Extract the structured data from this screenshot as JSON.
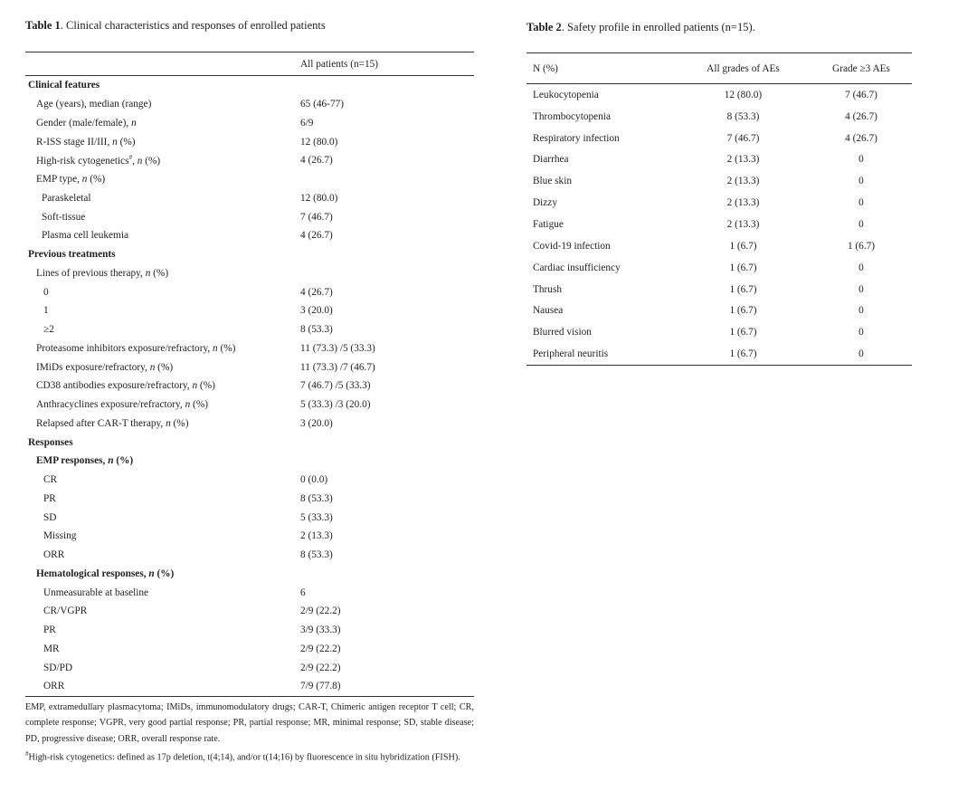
{
  "table1": {
    "caption_label": "Table 1",
    "caption_text": ". Clinical characteristics and responses of enrolled patients",
    "header": "All patients (n=15)",
    "rows": [
      {
        "label": "Clinical features",
        "value": "",
        "style": "sec"
      },
      {
        "label": "Age (years), median (range)",
        "value": "65 (46-77)",
        "style": "l1"
      },
      {
        "label": "Gender (male/female), n",
        "value": "6/9",
        "style": "l1"
      },
      {
        "label": "R-ISS stage II/III, n (%)",
        "value": "12 (80.0)",
        "style": "l1"
      },
      {
        "label": "High-risk cytogenetics#, n (%)",
        "value": "4 (26.7)",
        "style": "l1"
      },
      {
        "label": "EMP type, n (%)",
        "value": "",
        "style": "l1"
      },
      {
        "label": "Paraskeletal",
        "value": "12 (80.0)",
        "style": "l2"
      },
      {
        "label": "Soft-tissue",
        "value": "7 (46.7)",
        "style": "l2"
      },
      {
        "label": "Plasma cell leukemia",
        "value": "4 (26.7)",
        "style": "l2"
      },
      {
        "label": "Previous treatments",
        "value": "",
        "style": "sec"
      },
      {
        "label": "Lines of previous therapy, n (%)",
        "value": "",
        "style": "l1"
      },
      {
        "label": "0",
        "value": "4 (26.7)",
        "style": "l3"
      },
      {
        "label": "1",
        "value": "3 (20.0)",
        "style": "l3"
      },
      {
        "label": "≥2",
        "value": "8 (53.3)",
        "style": "l3"
      },
      {
        "label": "Proteasome inhibitors exposure/refractory, n (%)",
        "value": "11 (73.3) /5 (33.3)",
        "style": "l1"
      },
      {
        "label": "IMiDs exposure/refractory, n (%)",
        "value": "11 (73.3) /7 (46.7)",
        "style": "l1"
      },
      {
        "label": "CD38 antibodies exposure/refractory, n (%)",
        "value": "7 (46.7) /5 (33.3)",
        "style": "l1"
      },
      {
        "label": "Anthracyclines exposure/refractory, n (%)",
        "value": "5 (33.3) /3 (20.0)",
        "style": "l1"
      },
      {
        "label": "Relapsed after CAR-T therapy, n (%)",
        "value": "3 (20.0)",
        "style": "l1"
      },
      {
        "label": "Responses",
        "value": "",
        "style": "sec"
      },
      {
        "label": "EMP responses, n (%)",
        "value": "",
        "style": "sub"
      },
      {
        "label": "CR",
        "value": "0 (0.0)",
        "style": "l3"
      },
      {
        "label": "PR",
        "value": "8 (53.3)",
        "style": "l3"
      },
      {
        "label": "SD",
        "value": "5 (33.3)",
        "style": "l3"
      },
      {
        "label": "Missing",
        "value": "2 (13.3)",
        "style": "l3"
      },
      {
        "label": "ORR",
        "value": "8 (53.3)",
        "style": "l3"
      },
      {
        "label": "Hematological responses, n (%)",
        "value": "",
        "style": "sub"
      },
      {
        "label": "Unmeasurable at baseline",
        "value": "6",
        "style": "l3"
      },
      {
        "label": "CR/VGPR",
        "value": "2/9 (22.2)",
        "style": "l3"
      },
      {
        "label": "PR",
        "value": "3/9 (33.3)",
        "style": "l3"
      },
      {
        "label": "MR",
        "value": "2/9 (22.2)",
        "style": "l3"
      },
      {
        "label": "SD/PD",
        "value": "2/9 (22.2)",
        "style": "l3"
      },
      {
        "label": "ORR",
        "value": "7/9 (77.8)",
        "style": "l3"
      }
    ],
    "footnote_abbrev": "EMP, extramedullary plasmacytoma; IMiDs, immunomodulatory drugs; CAR-T, Chimeric antigen receptor T cell; CR, complete response; VGPR, very good partial response; PR, partial response; MR, minimal response; SD, stable disease; PD, progressive disease; ORR, overall response rate.",
    "footnote_mark": "#",
    "footnote_highrisk": "High-risk cytogenetics: defined as 17p deletion, t(4;14), and/or t(14;16) by fluorescence in situ hybridization (FISH)."
  },
  "table2": {
    "caption_label": "Table 2",
    "caption_text": ". Safety profile in enrolled patients (n=15).",
    "headers": [
      "N (%)",
      "All grades of AEs",
      "Grade ≥3 AEs"
    ],
    "rows": [
      [
        "Leukocytopenia",
        "12 (80.0)",
        "7 (46.7)"
      ],
      [
        "Thrombocytopenia",
        "8 (53.3)",
        "4 (26.7)"
      ],
      [
        "Respiratory infection",
        "7 (46.7)",
        "4 (26.7)"
      ],
      [
        "Diarrhea",
        "2 (13.3)",
        "0"
      ],
      [
        "Blue skin",
        "2 (13.3)",
        "0"
      ],
      [
        "Dizzy",
        "2 (13.3)",
        "0"
      ],
      [
        "Fatigue",
        "2 (13.3)",
        "0"
      ],
      [
        "Covid-19 infection",
        "1 (6.7)",
        "1 (6.7)"
      ],
      [
        "Cardiac insufficiency",
        "1 (6.7)",
        "0"
      ],
      [
        "Thrush",
        "1 (6.7)",
        "0"
      ],
      [
        "Nausea",
        "1 (6.7)",
        "0"
      ],
      [
        "Blurred vision",
        "1 (6.7)",
        "0"
      ],
      [
        "Peripheral neuritis",
        "1 (6.7)",
        "0"
      ]
    ]
  }
}
